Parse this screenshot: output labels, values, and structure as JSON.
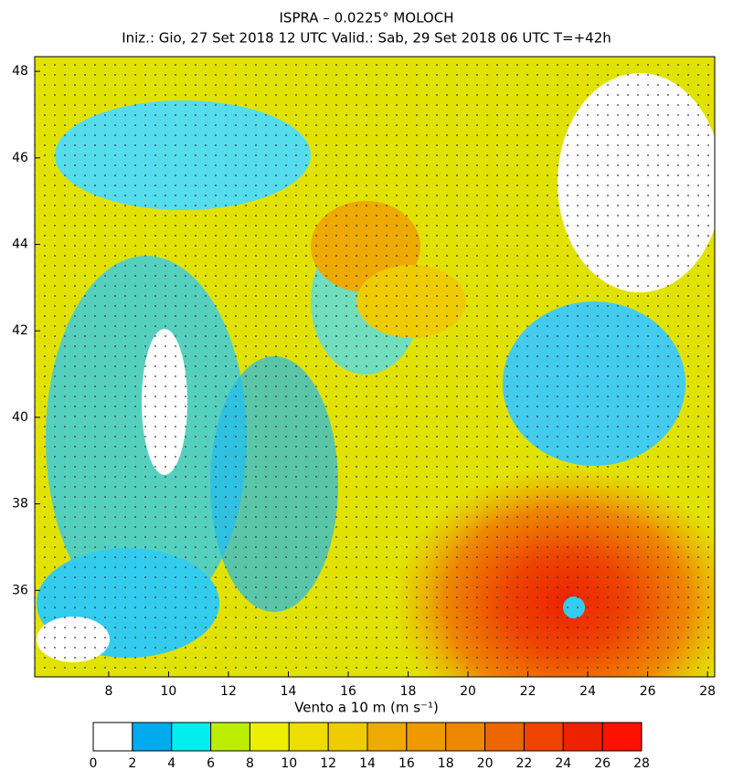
{
  "header": {
    "title": "ISPRA – 0.0225° MOLOCH",
    "subtitle": "Iniz.: Gio, 27 Set 2018  12 UTC  Valid.: Sab, 29 Set 2018  06 UTC  T=+42h"
  },
  "map": {
    "latlim": [
      34.0,
      48.34
    ],
    "lonlim": [
      5.53,
      28.24
    ],
    "lat_ticks": [
      48,
      46,
      44,
      42,
      40,
      38,
      36
    ],
    "lon_ticks": [
      8,
      10,
      12,
      14,
      16,
      18,
      20,
      22,
      24,
      26,
      28
    ]
  },
  "colorbar": {
    "label": "Vento a 10 m (m s⁻¹)",
    "levels": [
      0,
      2,
      4,
      6,
      8,
      10,
      12,
      14,
      16,
      18,
      20,
      22,
      24,
      26,
      28
    ],
    "colors": [
      "#ffffff",
      "#00aaee",
      "#00eeee",
      "#bbee00",
      "#eeee00",
      "#eedd00",
      "#eecc00",
      "#eeaa00",
      "#ee9900",
      "#ee8800",
      "#ee6600",
      "#ee4400",
      "#ee2200",
      "#ff1100"
    ]
  }
}
